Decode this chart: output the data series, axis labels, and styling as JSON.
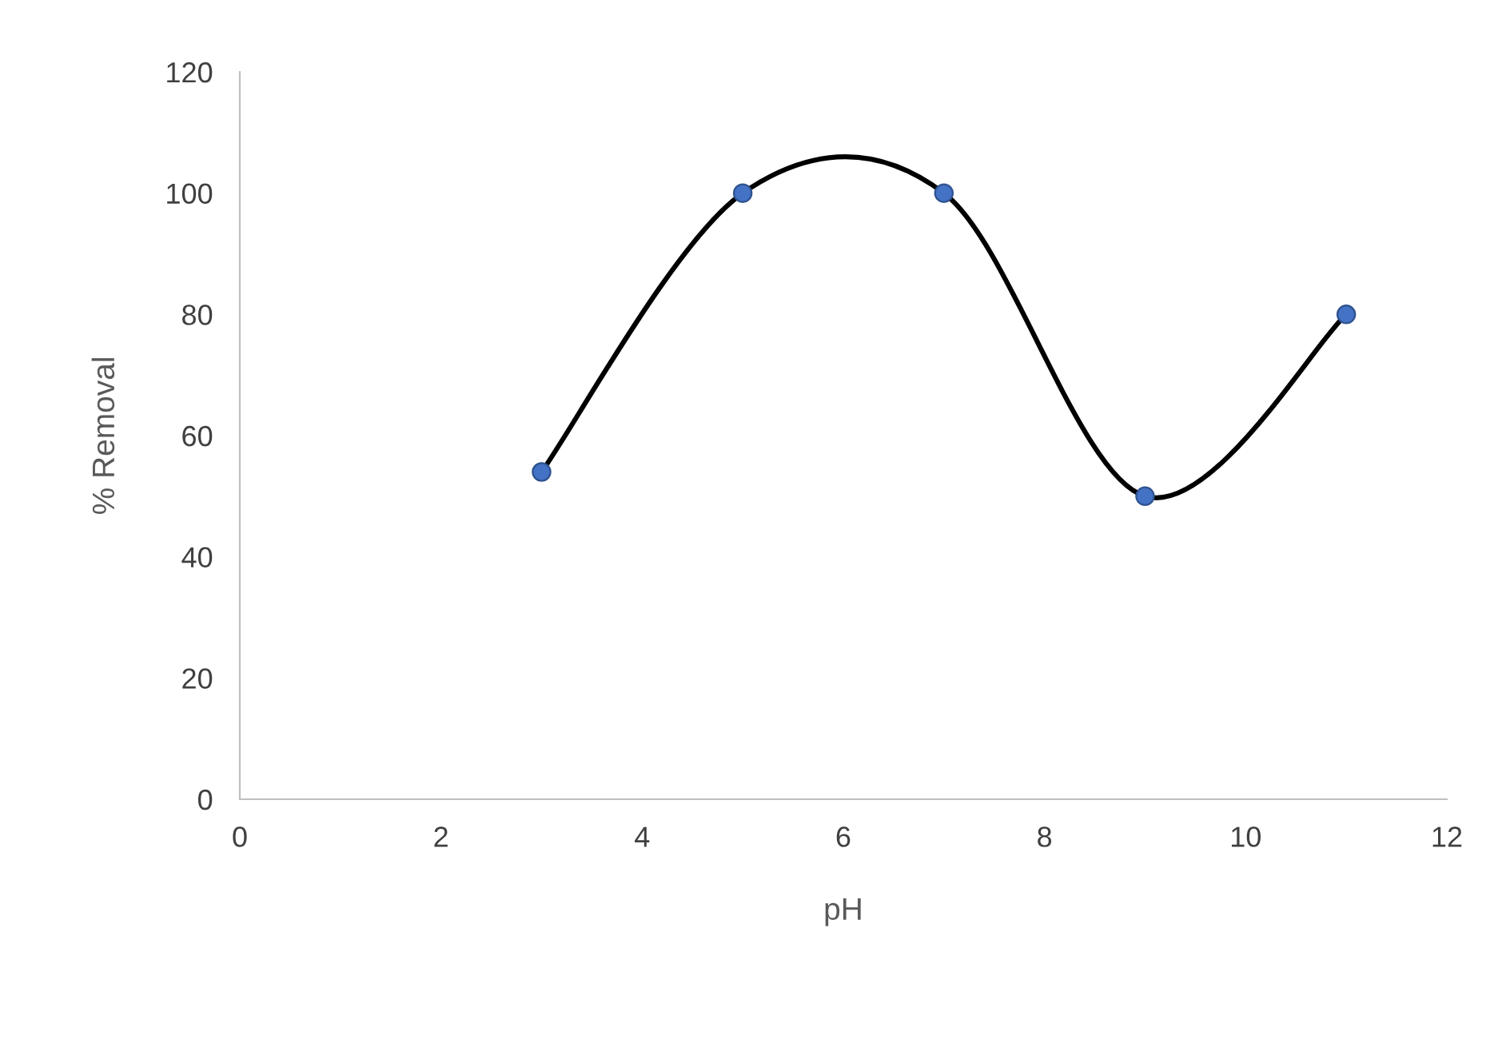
{
  "chart_data": {
    "type": "line",
    "xlabel": "pH",
    "ylabel": "% Removal",
    "x": [
      3,
      5,
      7,
      9,
      11
    ],
    "series": [
      {
        "color": "#000000",
        "marker": "none",
        "values": [
          54,
          100,
          100,
          50,
          80
        ]
      },
      {
        "type": "scatter",
        "marker": "circle",
        "color": "#4472c4",
        "values": [
          54,
          100,
          100,
          50,
          80
        ]
      }
    ],
    "line_style": "solid",
    "xlim": [
      0,
      12
    ],
    "xticks": [
      0,
      2,
      4,
      6,
      8,
      10,
      12
    ],
    "ylim": [
      0,
      120
    ],
    "yticks": [
      0,
      20,
      40,
      60,
      80,
      100,
      120
    ],
    "grid": false,
    "legend": false
  }
}
